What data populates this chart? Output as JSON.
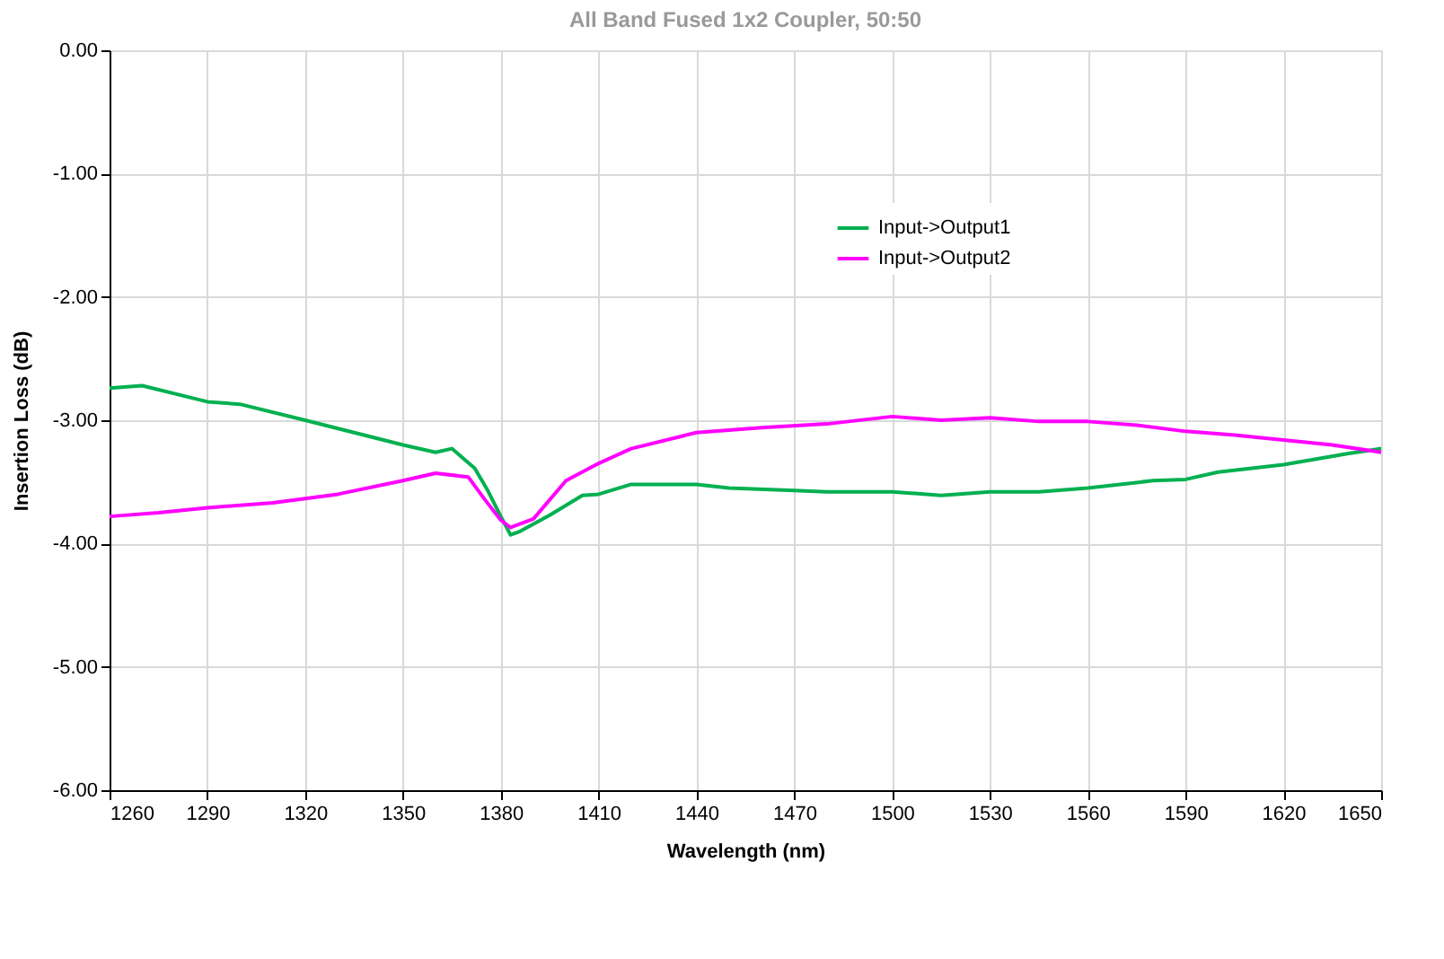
{
  "chart_data": {
    "type": "line",
    "title": "All Band Fused 1x2 Coupler, 50:50",
    "xlabel": "Wavelength (nm)",
    "ylabel": "Insertion Loss (dB)",
    "xlim": [
      1260,
      1650
    ],
    "xticks": [
      1260,
      1290,
      1320,
      1350,
      1380,
      1410,
      1440,
      1470,
      1500,
      1530,
      1560,
      1590,
      1620,
      1650
    ],
    "ylim": [
      -6,
      0
    ],
    "yticks": [
      {
        "value": -6,
        "label": "-6.00"
      },
      {
        "value": -5,
        "label": "-5.00"
      },
      {
        "value": -4,
        "label": "-4.00"
      },
      {
        "value": -3,
        "label": "-3.00"
      },
      {
        "value": -2,
        "label": "-2.00"
      },
      {
        "value": -1,
        "label": "-1.00"
      },
      {
        "value": 0,
        "label": "0.00"
      }
    ],
    "grid": true,
    "legend": "top right",
    "marker": "none",
    "line_style": "solid",
    "series": [
      {
        "name": "Input->Output1",
        "color": "#00b050",
        "x": [
          1260,
          1270,
          1290,
          1300,
          1320,
          1335,
          1350,
          1360,
          1365,
          1372,
          1376,
          1380,
          1383,
          1386,
          1395,
          1405,
          1410,
          1420,
          1440,
          1450,
          1470,
          1480,
          1500,
          1515,
          1530,
          1545,
          1560,
          1580,
          1590,
          1600,
          1620,
          1640,
          1650
        ],
        "values": [
          -2.74,
          -2.72,
          -2.85,
          -2.87,
          -3.0,
          -3.1,
          -3.2,
          -3.26,
          -3.23,
          -3.39,
          -3.57,
          -3.78,
          -3.93,
          -3.9,
          -3.77,
          -3.61,
          -3.6,
          -3.52,
          -3.52,
          -3.55,
          -3.57,
          -3.58,
          -3.58,
          -3.61,
          -3.58,
          -3.58,
          -3.55,
          -3.49,
          -3.48,
          -3.42,
          -3.36,
          -3.27,
          -3.23
        ]
      },
      {
        "name": "Input->Output2",
        "color": "#ff00ff",
        "x": [
          1260,
          1275,
          1290,
          1310,
          1330,
          1350,
          1360,
          1370,
          1375,
          1380,
          1383,
          1390,
          1400,
          1410,
          1420,
          1440,
          1460,
          1480,
          1500,
          1515,
          1530,
          1545,
          1560,
          1575,
          1590,
          1605,
          1620,
          1635,
          1650
        ],
        "values": [
          -3.78,
          -3.75,
          -3.71,
          -3.67,
          -3.6,
          -3.49,
          -3.43,
          -3.46,
          -3.64,
          -3.81,
          -3.87,
          -3.8,
          -3.49,
          -3.35,
          -3.23,
          -3.1,
          -3.06,
          -3.03,
          -2.97,
          -3.0,
          -2.98,
          -3.01,
          -3.01,
          -3.04,
          -3.09,
          -3.12,
          -3.16,
          -3.2,
          -3.26
        ]
      }
    ]
  }
}
